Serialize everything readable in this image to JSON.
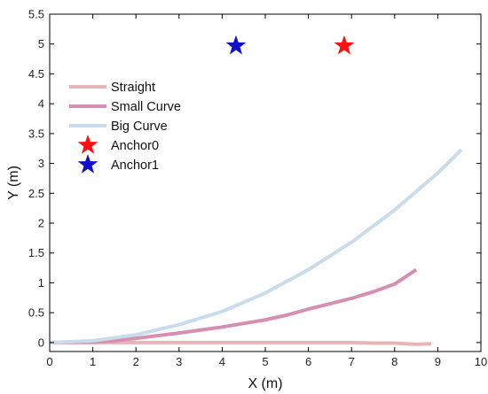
{
  "chart_data": {
    "type": "line",
    "title": "",
    "xlabel": "X (m)",
    "ylabel": "Y (m)",
    "xlim": [
      0,
      10
    ],
    "ylim": [
      -0.15,
      5.5
    ],
    "xticks": [
      "0",
      "1",
      "2",
      "3",
      "4",
      "5",
      "6",
      "7",
      "8",
      "9",
      "10"
    ],
    "yticks": [
      "0",
      "0.5",
      "1",
      "1.5",
      "2",
      "2.5",
      "3",
      "3.5",
      "4",
      "4.5",
      "5",
      "5.5"
    ],
    "grid": false,
    "legend_position": "top-left",
    "series": [
      {
        "name": "Straight",
        "color": "#e8b4b4",
        "points": [
          [
            0,
            0
          ],
          [
            1,
            0
          ],
          [
            2,
            0
          ],
          [
            3,
            0
          ],
          [
            4,
            0
          ],
          [
            5,
            0
          ],
          [
            6,
            0
          ],
          [
            7,
            0
          ],
          [
            7.5,
            -0.01
          ],
          [
            8,
            -0.01
          ],
          [
            8.5,
            -0.03
          ],
          [
            8.85,
            -0.02
          ]
        ]
      },
      {
        "name": "Small Curve",
        "color": "#d68fb2",
        "points": [
          [
            0,
            0
          ],
          [
            1,
            0.01
          ],
          [
            1.5,
            0.03
          ],
          [
            2,
            0.07
          ],
          [
            3,
            0.16
          ],
          [
            4,
            0.26
          ],
          [
            5,
            0.38
          ],
          [
            5.5,
            0.46
          ],
          [
            6,
            0.56
          ],
          [
            6.5,
            0.65
          ],
          [
            7,
            0.74
          ],
          [
            7.5,
            0.85
          ],
          [
            8,
            0.98
          ],
          [
            8.5,
            1.22
          ]
        ]
      },
      {
        "name": "Big Curve",
        "color": "#c9dcec",
        "points": [
          [
            0,
            0
          ],
          [
            1,
            0.03
          ],
          [
            2,
            0.13
          ],
          [
            3,
            0.3
          ],
          [
            4,
            0.52
          ],
          [
            5,
            0.83
          ],
          [
            6,
            1.22
          ],
          [
            7,
            1.68
          ],
          [
            8,
            2.22
          ],
          [
            9,
            2.84
          ],
          [
            9.55,
            3.23
          ]
        ]
      }
    ],
    "markers": [
      {
        "name": "Anchor0",
        "x": 6.83,
        "y": 4.97,
        "color": "#ff1010",
        "symbol": "star-icon"
      },
      {
        "name": "Anchor1",
        "x": 4.32,
        "y": 4.97,
        "color": "#1010cc",
        "symbol": "star-icon"
      }
    ]
  }
}
